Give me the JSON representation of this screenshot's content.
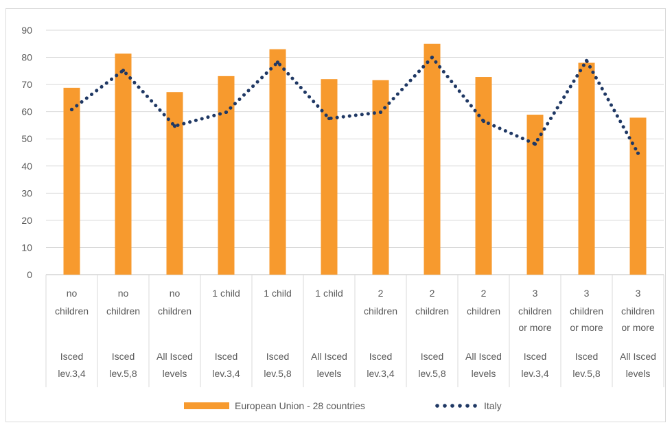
{
  "chart_data": {
    "type": "bar",
    "ylim": [
      0,
      90
    ],
    "yticks": [
      0,
      10,
      20,
      30,
      40,
      50,
      60,
      70,
      80,
      90
    ],
    "grid": true,
    "legend_position": "bottom",
    "categories": [
      {
        "line1": "no",
        "line2": "children",
        "line3": "",
        "line4": "Isced",
        "line5": "lev.3,4"
      },
      {
        "line1": "no",
        "line2": "children",
        "line3": "",
        "line4": "Isced",
        "line5": "lev.5,8"
      },
      {
        "line1": "no",
        "line2": "children",
        "line3": "",
        "line4": "All Isced",
        "line5": "levels"
      },
      {
        "line1": "1 child",
        "line2": "",
        "line3": "",
        "line4": "Isced",
        "line5": "lev.3,4"
      },
      {
        "line1": "1 child",
        "line2": "",
        "line3": "",
        "line4": "Isced",
        "line5": "lev.5,8"
      },
      {
        "line1": "1 child",
        "line2": "",
        "line3": "",
        "line4": "All Isced",
        "line5": "levels"
      },
      {
        "line1": "2",
        "line2": "children",
        "line3": "",
        "line4": "Isced",
        "line5": "lev.3,4"
      },
      {
        "line1": "2",
        "line2": "children",
        "line3": "",
        "line4": "Isced",
        "line5": "lev.5,8"
      },
      {
        "line1": "2",
        "line2": "children",
        "line3": "",
        "line4": "All Isced",
        "line5": "levels"
      },
      {
        "line1": "3",
        "line2": "children",
        "line3": "or more",
        "line4": "Isced",
        "line5": "lev.3,4"
      },
      {
        "line1": "3",
        "line2": "children",
        "line3": "or more",
        "line4": "Isced",
        "line5": "lev.5,8"
      },
      {
        "line1": "3",
        "line2": "children",
        "line3": "or more",
        "line4": "All Isced",
        "line5": "levels"
      }
    ],
    "series": [
      {
        "name": "European Union - 28 countries",
        "type": "bar",
        "color": "#f79a2e",
        "values": [
          68.8,
          81.4,
          67.2,
          73.1,
          83.0,
          72.0,
          71.6,
          85.0,
          72.8,
          58.9,
          78.0,
          57.8
        ]
      },
      {
        "name": "Italy",
        "type": "line-dotted",
        "color": "#1f3864",
        "values": [
          60.8,
          75.2,
          54.7,
          59.8,
          78.2,
          57.5,
          59.8,
          80.0,
          56.5,
          48.1,
          78.8,
          44.7
        ]
      }
    ]
  }
}
